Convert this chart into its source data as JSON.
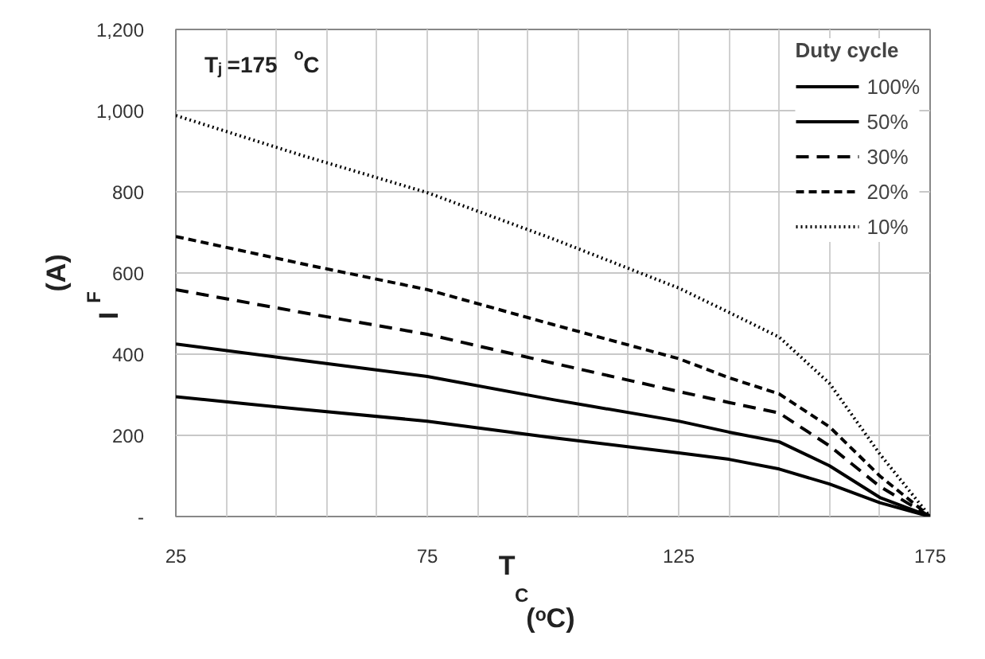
{
  "chart_data": {
    "type": "line",
    "xlabel": "T$_{C}$ (ᵒC)",
    "ylabel": "I$_{F}$ (A)",
    "legend_title": "Duty cycle",
    "annotations": [
      "T$_{j}$=175 $^{o}$C"
    ],
    "x": [
      25,
      50,
      75,
      100,
      125,
      135,
      145,
      155,
      165,
      175
    ],
    "series": [
      {
        "name": "100%",
        "color": "#000000",
        "line_style": "solid",
        "values": [
          295,
          264,
          235,
          194,
          157,
          141,
          117,
          80,
          34,
          0
        ]
      },
      {
        "name": "50%",
        "color": "#000000",
        "line_style": "solid",
        "values": [
          425,
          385,
          345,
          288,
          235,
          208,
          184,
          125,
          47,
          0
        ]
      },
      {
        "name": "30%",
        "color": "#000000",
        "line_style": "dashed",
        "values": [
          559,
          503,
          449,
          378,
          308,
          281,
          255,
          174,
          74,
          0
        ]
      },
      {
        "name": "20%",
        "color": "#000000",
        "line_style": "shortdash",
        "values": [
          690,
          623,
          559,
          473,
          389,
          342,
          302,
          221,
          100,
          0
        ]
      },
      {
        "name": "10%",
        "color": "#000000",
        "line_style": "dotted",
        "values": [
          988,
          890,
          798,
          684,
          563,
          503,
          442,
          328,
          154,
          0
        ]
      }
    ],
    "xlim": [
      25,
      175
    ],
    "ylim": [
      0,
      1200
    ],
    "xticks": [
      25,
      {
        "value": 35,
        "label": null
      },
      {
        "value": 45,
        "label": null
      },
      {
        "value": 55,
        "label": null
      },
      {
        "value": 65,
        "label": null
      },
      75,
      {
        "value": 85,
        "label": null
      },
      {
        "value": 95,
        "label": null
      },
      {
        "value": 105,
        "label": null
      },
      {
        "value": 115,
        "label": null
      },
      125,
      {
        "value": 135,
        "label": null
      },
      {
        "value": 145,
        "label": null
      },
      {
        "value": 155,
        "label": null
      },
      {
        "value": 165,
        "label": null
      },
      175
    ],
    "yticks": [
      {
        "value": 0,
        "label": "-"
      },
      200,
      400,
      600,
      800,
      {
        "value": 1000,
        "label": "1,000"
      },
      {
        "value": 1200,
        "label": "1,200"
      }
    ],
    "grid": true,
    "legend": "top right",
    "marker": "none"
  }
}
